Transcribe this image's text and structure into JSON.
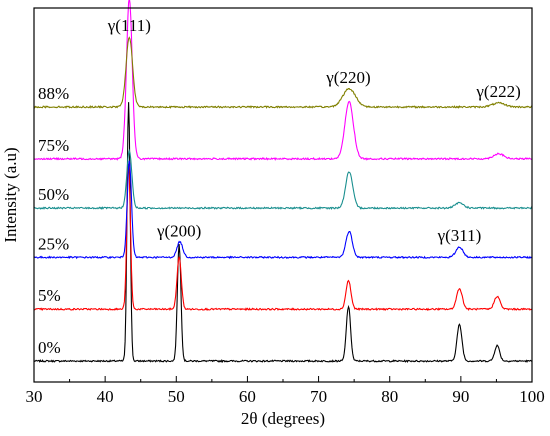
{
  "chart_data": {
    "type": "line",
    "xlabel": "2θ (degrees)",
    "ylabel": "Intensity (a.u)",
    "xlim": [
      30,
      100
    ],
    "x_ticks": [
      30,
      40,
      50,
      60,
      70,
      80,
      90,
      100
    ],
    "y_ticks_shown": false,
    "grid": false,
    "legend": "none",
    "annotations": [
      {
        "text": "γ(111)",
        "x": 43.4,
        "series": "88%"
      },
      {
        "text": "γ(220)",
        "x": 74.2,
        "series": "88%"
      },
      {
        "text": "γ(222)",
        "x": 95.3,
        "series": "88%"
      },
      {
        "text": "γ(200)",
        "x": 50.4,
        "series": "25%"
      },
      {
        "text": "γ(311)",
        "x": 89.8,
        "series": "25%"
      }
    ],
    "series": [
      {
        "name": "0%",
        "color": "#000000",
        "baseline": 0.05,
        "peaks": [
          {
            "x": 43.3,
            "height": 1.0,
            "width": 0.22
          },
          {
            "x": 50.4,
            "height": 0.45,
            "width": 0.25
          },
          {
            "x": 74.2,
            "height": 0.21,
            "width": 0.3
          },
          {
            "x": 89.8,
            "height": 0.14,
            "width": 0.35
          },
          {
            "x": 95.1,
            "height": 0.06,
            "width": 0.35
          }
        ]
      },
      {
        "name": "5%",
        "color": "#ff0000",
        "baseline": 0.25,
        "peaks": [
          {
            "x": 43.3,
            "height": 0.56,
            "width": 0.25
          },
          {
            "x": 50.4,
            "height": 0.2,
            "width": 0.3
          },
          {
            "x": 74.2,
            "height": 0.11,
            "width": 0.35
          },
          {
            "x": 89.8,
            "height": 0.08,
            "width": 0.4
          },
          {
            "x": 95.1,
            "height": 0.05,
            "width": 0.4
          }
        ]
      },
      {
        "name": "25%",
        "color": "#0000ff",
        "baseline": 0.45,
        "peaks": [
          {
            "x": 43.4,
            "height": 0.37,
            "width": 0.3
          },
          {
            "x": 50.5,
            "height": 0.06,
            "width": 0.4
          },
          {
            "x": 74.3,
            "height": 0.1,
            "width": 0.45
          },
          {
            "x": 89.8,
            "height": 0.04,
            "width": 0.5
          }
        ]
      },
      {
        "name": "50%",
        "color": "#1a8f8f",
        "baseline": 0.64,
        "peaks": [
          {
            "x": 43.4,
            "height": 0.22,
            "width": 0.35
          },
          {
            "x": 74.3,
            "height": 0.14,
            "width": 0.5
          },
          {
            "x": 89.8,
            "height": 0.02,
            "width": 0.6
          }
        ]
      },
      {
        "name": "75%",
        "color": "#ff00ff",
        "baseline": 0.83,
        "peaks": [
          {
            "x": 43.4,
            "height": 0.62,
            "width": 0.4
          },
          {
            "x": 74.3,
            "height": 0.22,
            "width": 0.6
          },
          {
            "x": 95.3,
            "height": 0.02,
            "width": 0.7
          }
        ]
      },
      {
        "name": "88%",
        "color": "#808000",
        "baseline": 1.03,
        "peaks": [
          {
            "x": 43.4,
            "height": 0.27,
            "width": 0.45
          },
          {
            "x": 74.3,
            "height": 0.07,
            "width": 0.9
          },
          {
            "x": 95.3,
            "height": 0.015,
            "width": 0.9
          }
        ]
      }
    ]
  }
}
